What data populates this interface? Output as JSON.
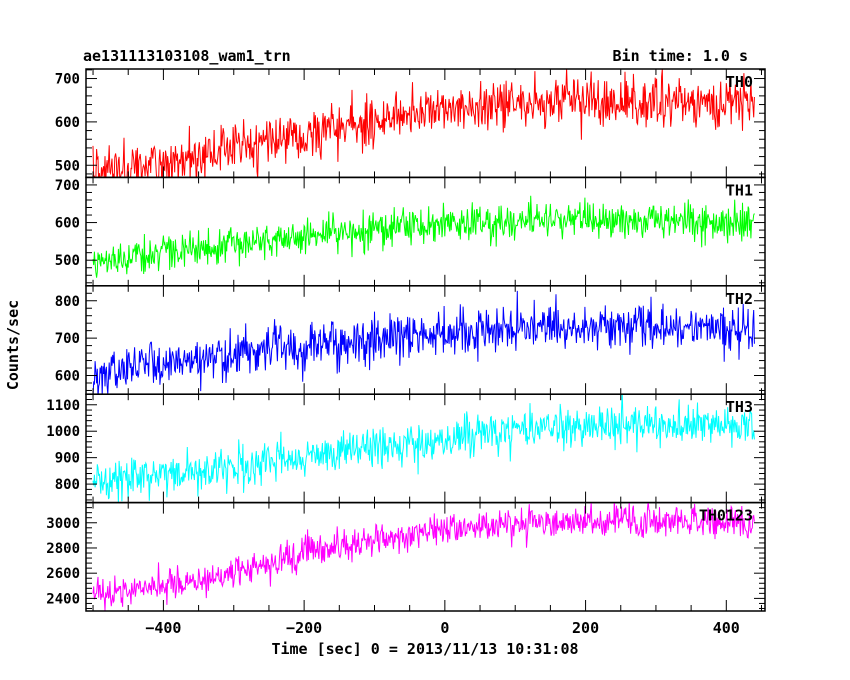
{
  "header": {
    "title": "ae131113103108_wam1_trn",
    "bin_time": "Bin time: 1.0 s"
  },
  "chart_data": {
    "type": "line",
    "xlabel": "Time [sec] 0 = 2013/11/13 10:31:08",
    "ylabel": "Counts/sec",
    "xlim": [
      -510,
      455
    ],
    "x_range": [
      -500,
      440
    ],
    "xticks": [
      -400,
      -200,
      0,
      200,
      400
    ],
    "xtick_labels": [
      "−400",
      "−200",
      "0",
      "200",
      "400"
    ],
    "grid": false,
    "panels": [
      {
        "name": "TH0",
        "color": "#ff0000",
        "ylim": [
          472,
          722
        ],
        "yticks": [
          500,
          600,
          700
        ],
        "ytick_labels": [
          "500",
          "600",
          "700"
        ],
        "trend_x": [
          -500,
          -400,
          -300,
          -200,
          -100,
          0,
          100,
          200,
          300,
          440
        ],
        "trend_y": [
          485,
          505,
          540,
          575,
          600,
          630,
          640,
          650,
          645,
          640
        ],
        "noise": 28
      },
      {
        "name": "TH1",
        "color": "#00ff00",
        "ylim": [
          432,
          720
        ],
        "yticks": [
          500,
          600,
          700
        ],
        "ytick_labels": [
          "500",
          "600",
          "700"
        ],
        "trend_x": [
          -500,
          -400,
          -300,
          -200,
          -100,
          0,
          100,
          200,
          300,
          440
        ],
        "trend_y": [
          500,
          515,
          540,
          560,
          580,
          595,
          605,
          610,
          605,
          600
        ],
        "noise": 24
      },
      {
        "name": "TH2",
        "color": "#0000ff",
        "ylim": [
          550,
          840
        ],
        "yticks": [
          600,
          700,
          800
        ],
        "ytick_labels": [
          "600",
          "700",
          "800"
        ],
        "trend_x": [
          -500,
          -400,
          -300,
          -200,
          -100,
          0,
          100,
          200,
          300,
          440
        ],
        "trend_y": [
          615,
          630,
          655,
          680,
          700,
          715,
          725,
          730,
          730,
          725
        ],
        "noise": 30
      },
      {
        "name": "TH3",
        "color": "#00ffff",
        "ylim": [
          730,
          1140
        ],
        "yticks": [
          800,
          900,
          1000,
          1100
        ],
        "ytick_labels": [
          "800",
          "900",
          "1000",
          "1100"
        ],
        "trend_x": [
          -500,
          -400,
          -300,
          -200,
          -100,
          0,
          100,
          200,
          300,
          440
        ],
        "trend_y": [
          815,
          835,
          865,
          905,
          940,
          975,
          1005,
          1020,
          1025,
          1020
        ],
        "noise": 38
      },
      {
        "name": "TH0123",
        "color": "#ff00ff",
        "ylim": [
          2300,
          3160
        ],
        "yticks": [
          2400,
          2600,
          2800,
          3000
        ],
        "ytick_labels": [
          "2400",
          "2600",
          "2800",
          "3000"
        ],
        "trend_x": [
          -500,
          -400,
          -300,
          -200,
          -100,
          0,
          100,
          200,
          300,
          440
        ],
        "trend_y": [
          2420,
          2490,
          2600,
          2760,
          2870,
          2940,
          2990,
          3020,
          3010,
          2990
        ],
        "noise": 65
      }
    ]
  }
}
